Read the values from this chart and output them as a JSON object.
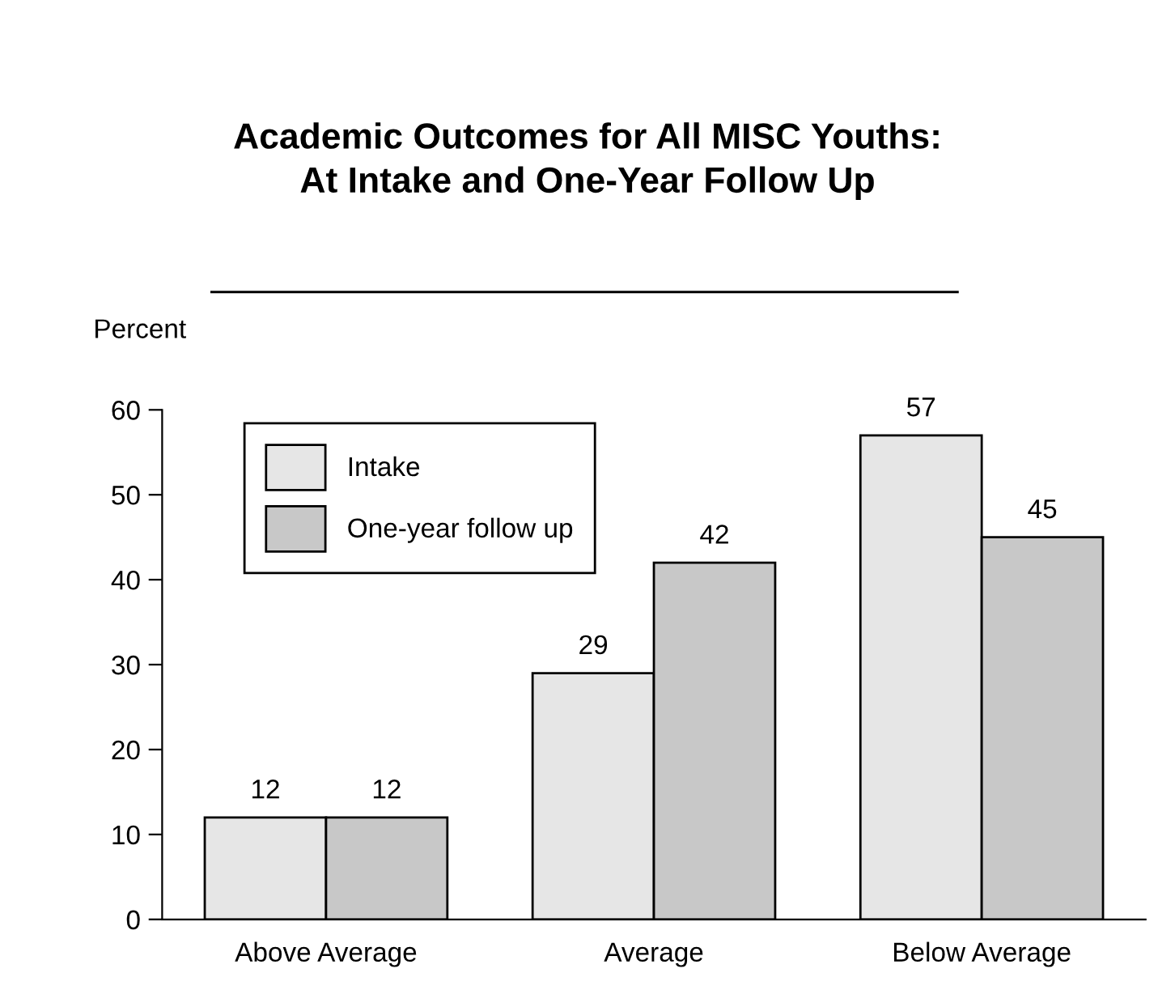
{
  "chart_data": {
    "type": "bar",
    "title": "Academic Outcomes for All MISC Youths:\nAt Intake and One-Year Follow Up",
    "ylabel": "Percent",
    "categories": [
      "Above Average",
      "Average",
      "Below Average"
    ],
    "series": [
      {
        "name": "Intake",
        "color": "#e6e6e6",
        "values": [
          12,
          29,
          57
        ]
      },
      {
        "name": "One-year follow up",
        "color": "#c8c8c8",
        "values": [
          12,
          42,
          45
        ]
      }
    ],
    "ylim": [
      0,
      60
    ],
    "yticks": [
      0,
      10,
      20,
      30,
      40,
      50,
      60
    ],
    "grid": false,
    "legend": "top left",
    "data_labels": true
  }
}
